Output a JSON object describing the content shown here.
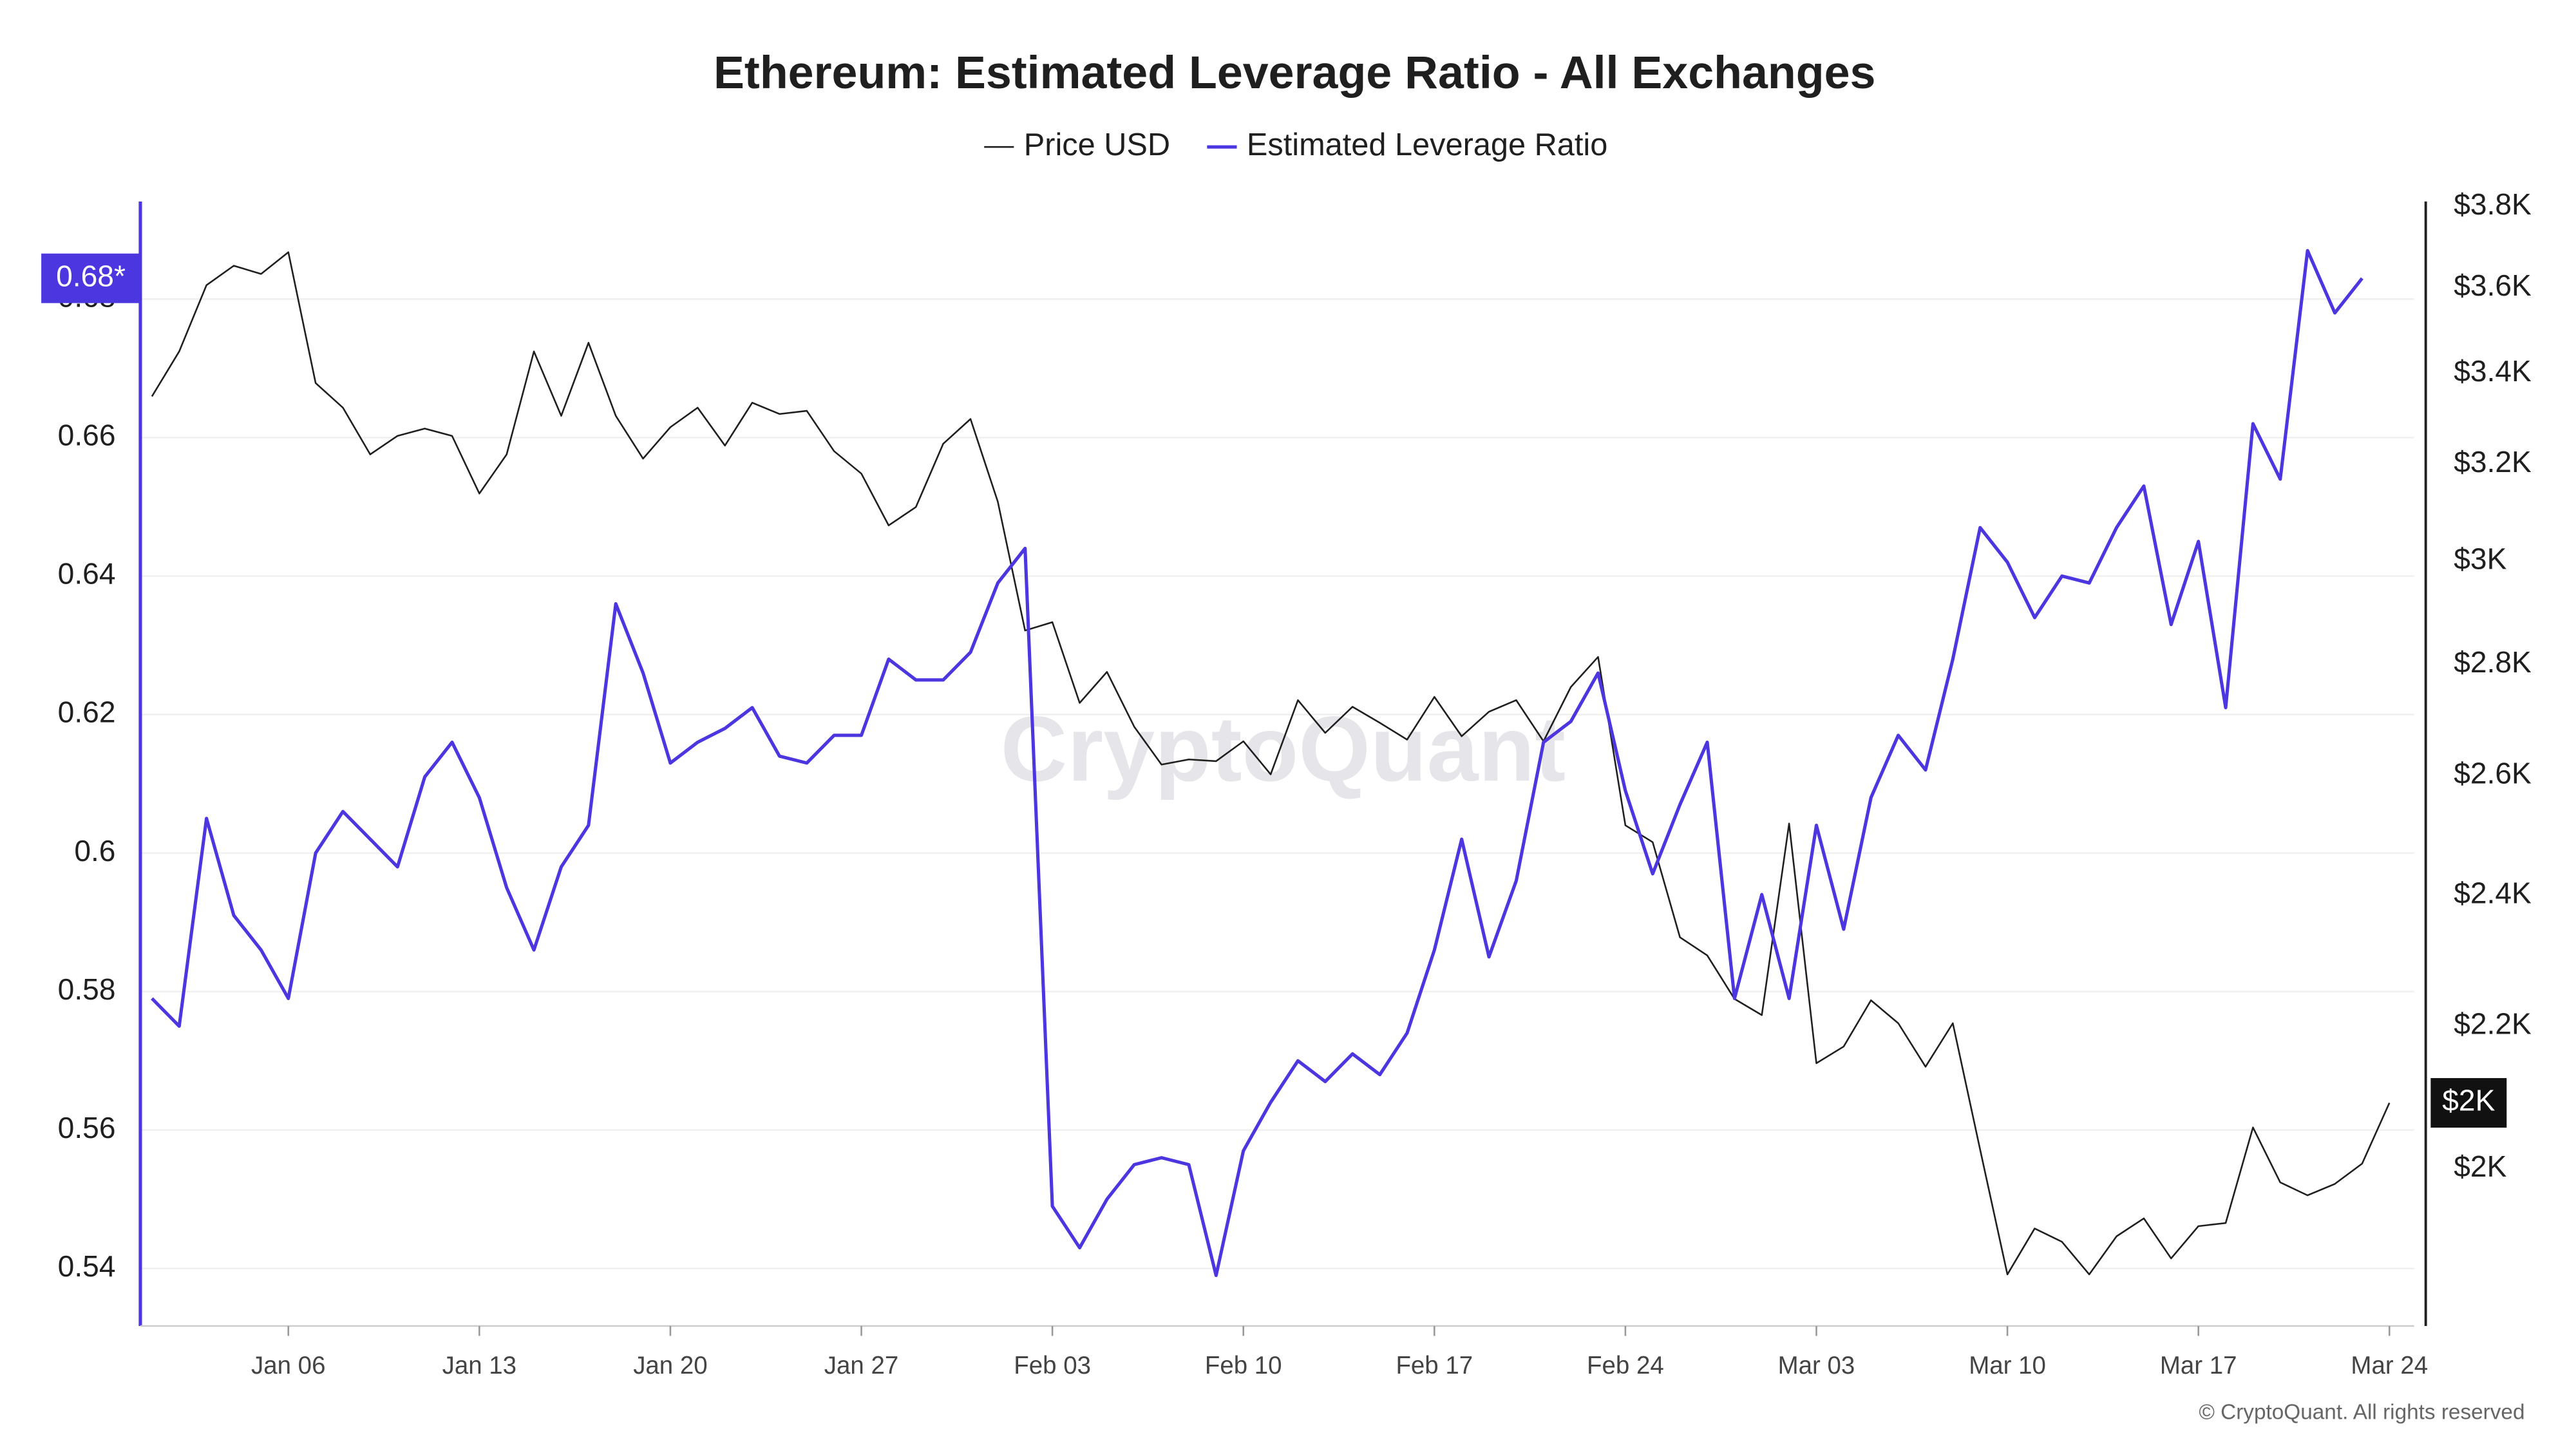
{
  "chart_data": {
    "type": "line",
    "title": "Ethereum: Estimated Leverage Ratio - All Exchanges",
    "watermark": "CryptoQuant",
    "footer": "© CryptoQuant. All rights reserved",
    "categories": [
      null,
      null,
      null,
      null,
      null,
      "Jan 06",
      null,
      null,
      null,
      null,
      null,
      null,
      "Jan 13",
      null,
      null,
      null,
      null,
      null,
      null,
      "Jan 20",
      null,
      null,
      null,
      null,
      null,
      null,
      "Jan 27",
      null,
      null,
      null,
      null,
      null,
      null,
      "Feb 03",
      null,
      null,
      null,
      null,
      null,
      null,
      "Feb 10",
      null,
      null,
      null,
      null,
      null,
      null,
      "Feb 17",
      null,
      null,
      null,
      null,
      null,
      null,
      "Feb 24",
      null,
      null,
      null,
      null,
      null,
      null,
      "Mar 03",
      null,
      null,
      null,
      null,
      null,
      null,
      "Mar 10",
      null,
      null,
      null,
      null,
      null,
      null,
      "Mar 17",
      null,
      null,
      null,
      null,
      null,
      null,
      "Mar 24"
    ],
    "series": [
      {
        "name": "Price USD",
        "color": "#1f1f1f",
        "axis": "y2",
        "values": [
          3348,
          3450,
          3606,
          3653,
          3633,
          3686,
          3378,
          3323,
          3221,
          3261,
          3277,
          3261,
          3138,
          3221,
          3450,
          3305,
          3470,
          3305,
          3212,
          3280,
          3323,
          3240,
          3334,
          3309,
          3316,
          3228,
          3180,
          3072,
          3110,
          3244,
          3298,
          3121,
          2864,
          2880,
          2729,
          2786,
          2686,
          2619,
          2628,
          2625,
          2660,
          2602,
          2734,
          2675,
          2722,
          2693,
          2663,
          2740,
          2669,
          2713,
          2734,
          2660,
          2758,
          2814,
          2515,
          2487,
          2334,
          2306,
          2240,
          2216,
          2518,
          2146,
          2170,
          2238,
          2204,
          2141,
          2204,
          2026,
          1864,
          1922,
          1905,
          1864,
          1912,
          1935,
          1884,
          1925,
          1929,
          2056,
          1982,
          1965,
          1980,
          2007,
          2090
        ]
      },
      {
        "name": "Estimated Leverage Ratio",
        "color": "#4b36e0",
        "values": [
          0.579,
          0.575,
          0.605,
          0.591,
          0.586,
          0.579,
          0.6,
          0.606,
          0.602,
          0.598,
          0.611,
          0.616,
          0.608,
          0.595,
          0.586,
          0.598,
          0.604,
          0.636,
          0.626,
          0.613,
          0.616,
          0.618,
          0.621,
          0.614,
          0.613,
          0.617,
          0.617,
          0.628,
          0.625,
          0.625,
          0.629,
          0.639,
          0.644,
          0.549,
          0.543,
          0.55,
          0.555,
          0.556,
          0.555,
          0.539,
          0.557,
          0.564,
          0.57,
          0.567,
          0.571,
          0.568,
          0.574,
          0.586,
          0.602,
          0.585,
          0.596,
          0.616,
          0.619,
          0.626,
          0.609,
          0.597,
          0.607,
          0.616,
          0.579,
          0.594,
          0.579,
          0.604,
          0.589,
          0.608,
          0.617,
          0.612,
          0.628,
          0.647,
          0.642,
          0.634,
          0.64,
          0.639,
          0.647,
          0.653,
          0.633,
          0.645,
          0.621,
          0.662,
          0.654,
          0.687,
          0.678,
          0.683,
          null
        ]
      }
    ],
    "ylim": [
      0.5317,
      0.6941
    ],
    "yticks": [
      0.54,
      0.56,
      0.58,
      0.6,
      0.62,
      0.64,
      0.66,
      0.68
    ],
    "y_current": {
      "value": 0.683,
      "label": "0.68*"
    },
    "y2lim": [
      1801,
      3813
    ],
    "y2log": true,
    "y2ticks": [
      {
        "value": 2000,
        "label": "$2K"
      },
      {
        "value": 2200,
        "label": "$2.2K"
      },
      {
        "value": 2400,
        "label": "$2.4K"
      },
      {
        "value": 2600,
        "label": "$2.6K"
      },
      {
        "value": 2800,
        "label": "$2.8K"
      },
      {
        "value": 3000,
        "label": "$3K"
      },
      {
        "value": 3200,
        "label": "$3.2K"
      },
      {
        "value": 3400,
        "label": "$3.4K"
      },
      {
        "value": 3600,
        "label": "$3.6K"
      },
      {
        "value": 3800,
        "label": "$3.8K"
      }
    ],
    "y2_current": {
      "value": 2090,
      "label": "$2K"
    },
    "grid": true
  }
}
